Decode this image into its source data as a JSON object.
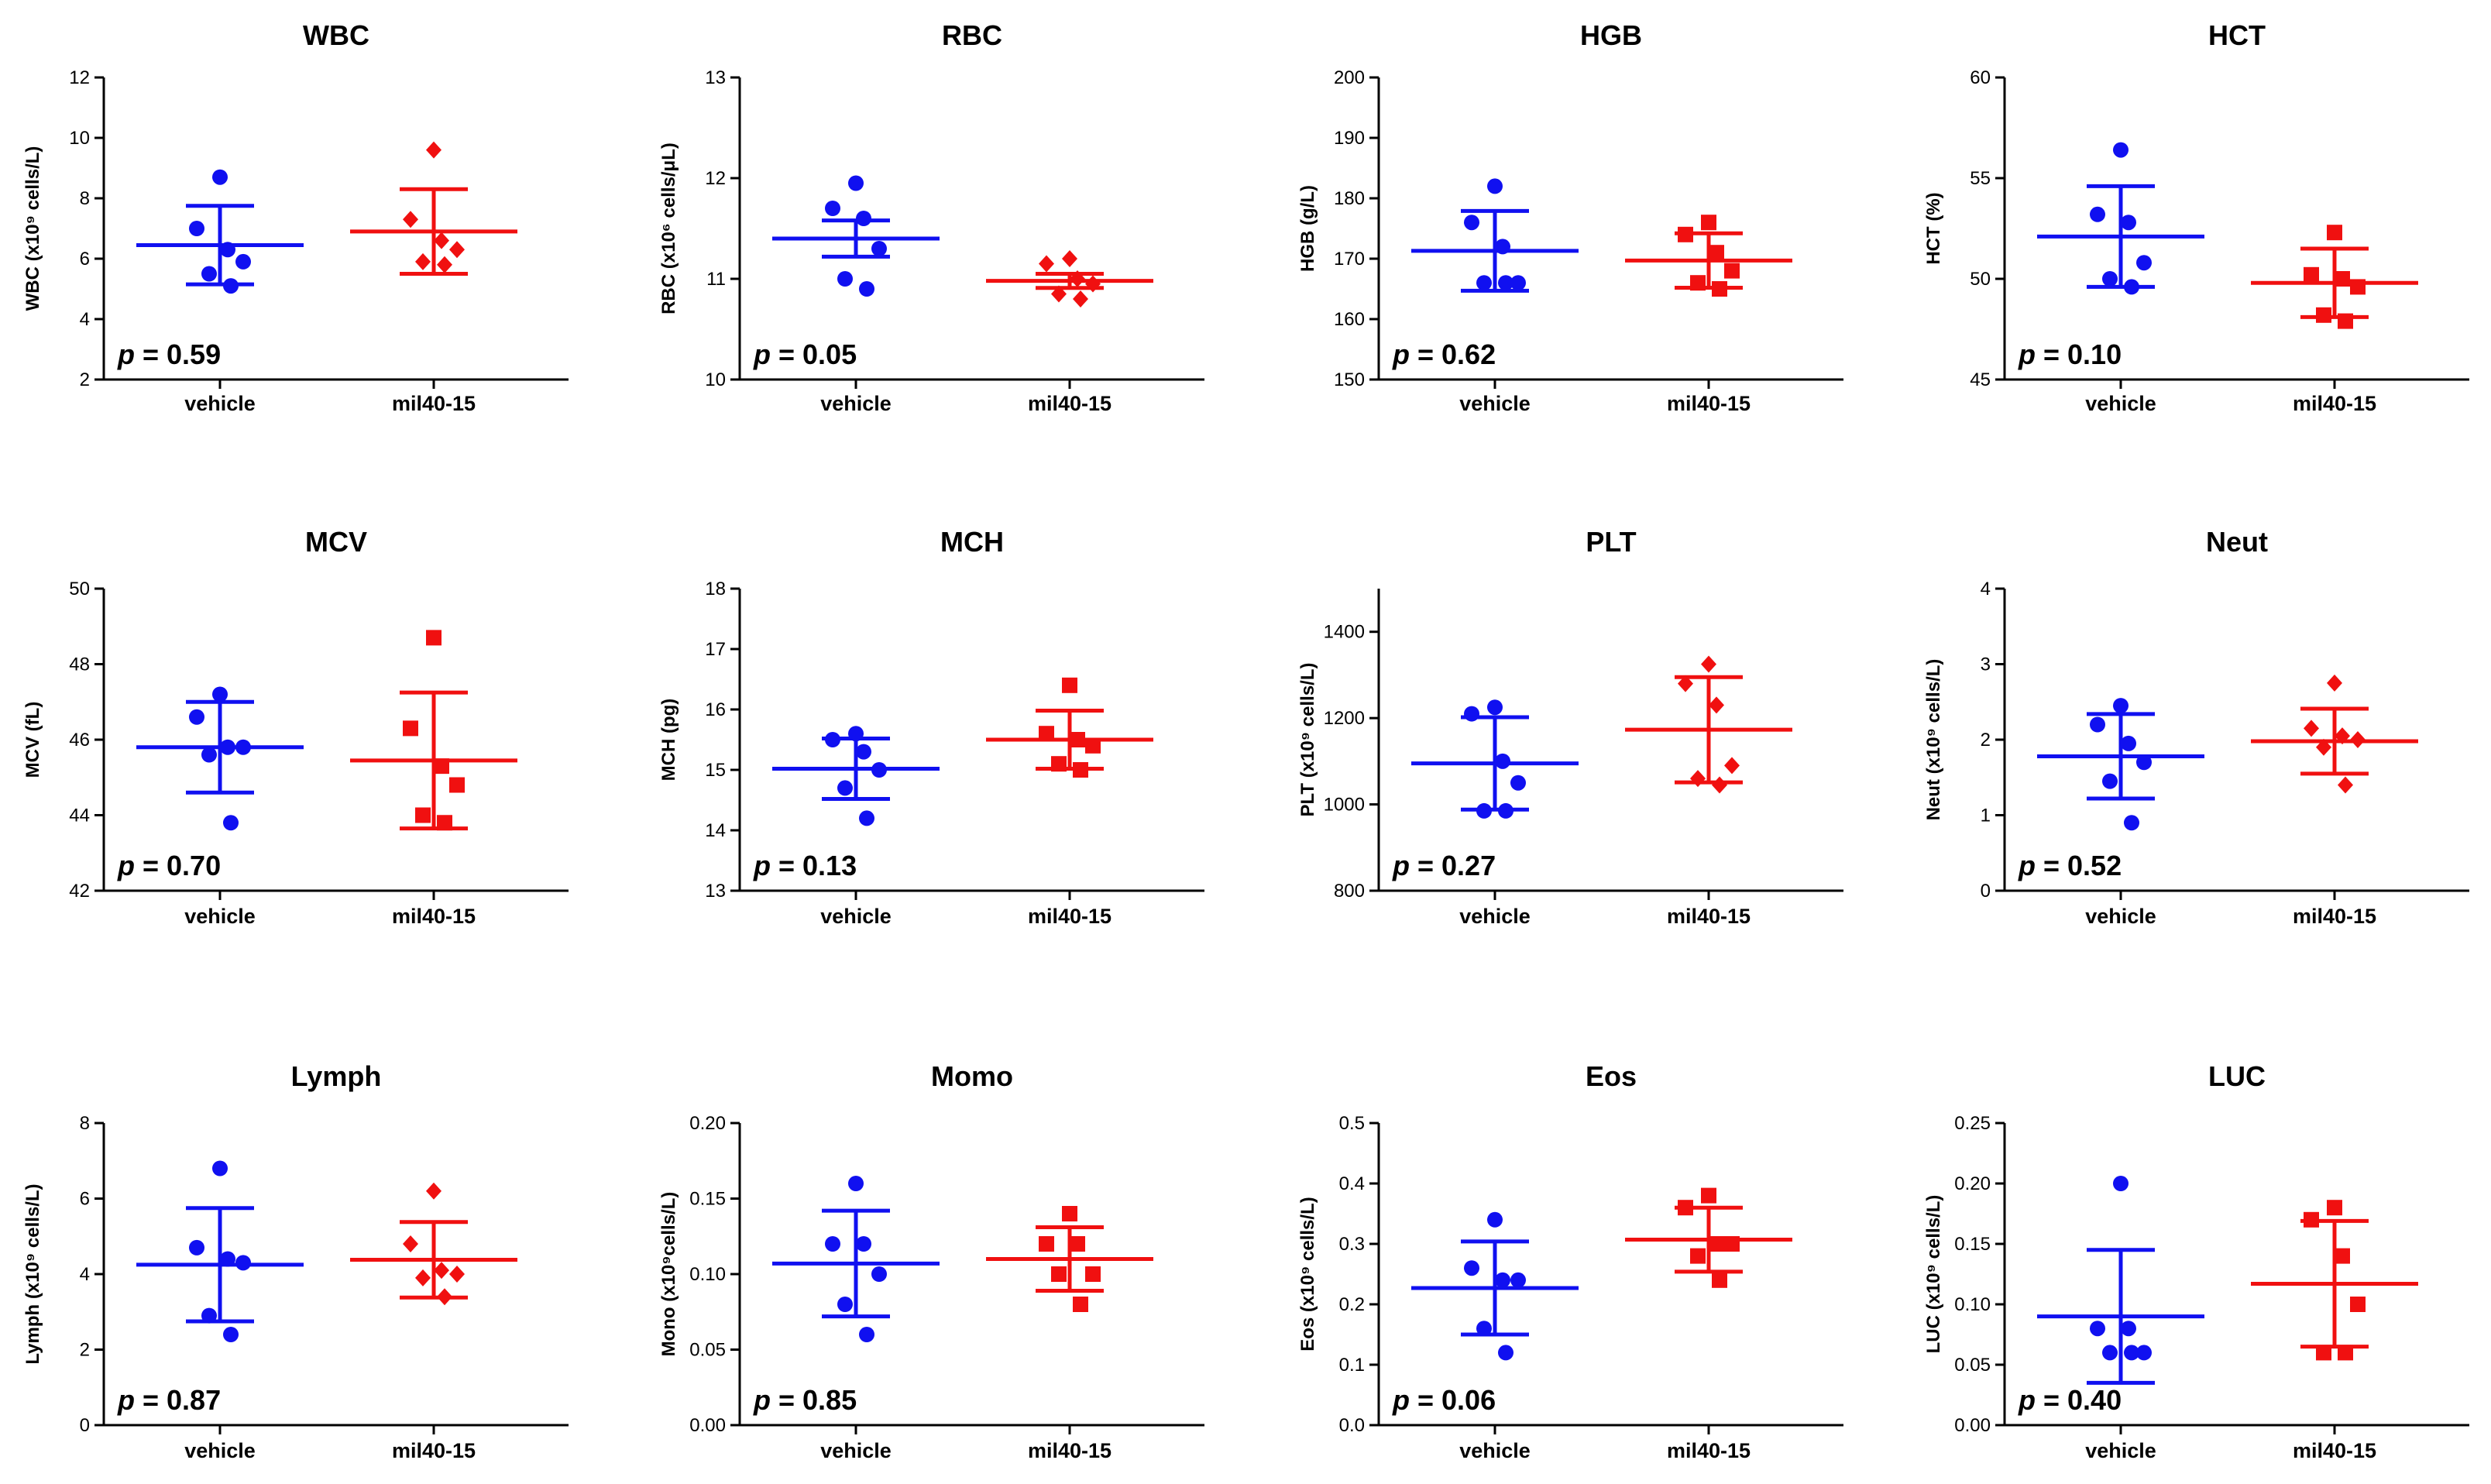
{
  "chart_data": [
    {
      "key": "wbc",
      "type": "scatter",
      "title": "WBC",
      "ylabel": "WBC (x10⁹ cells/L)",
      "categories": [
        "vehicle",
        "mil40-15"
      ],
      "ylim": [
        2,
        12
      ],
      "yticks": [
        2,
        4,
        6,
        8,
        10,
        12
      ],
      "p_label": "p",
      "p_value": "= 0.59",
      "series": [
        {
          "name": "vehicle",
          "color": "#1010f0",
          "marker": "circle",
          "points": [
            8.7,
            7.0,
            6.3,
            5.9,
            5.5,
            5.1
          ],
          "mean": 6.45,
          "sd": 1.3
        },
        {
          "name": "mil40-15",
          "color": "#f01010",
          "marker": "diamond",
          "points": [
            9.6,
            7.3,
            6.6,
            6.3,
            5.9,
            5.8
          ],
          "mean": 6.9,
          "sd": 1.4
        }
      ]
    },
    {
      "key": "rbc",
      "type": "scatter",
      "title": "RBC",
      "ylabel": "RBC (x10⁶ cells/μL)",
      "categories": [
        "vehicle",
        "mil40-15"
      ],
      "ylim": [
        10,
        13
      ],
      "yticks": [
        10,
        11,
        12,
        13
      ],
      "p_label": "p",
      "p_value": "= 0.05",
      "series": [
        {
          "name": "vehicle",
          "color": "#1010f0",
          "marker": "circle",
          "points": [
            11.95,
            11.7,
            11.6,
            11.3,
            11.0,
            10.9
          ],
          "mean": 11.4,
          "sd": 0.18
        },
        {
          "name": "mil40-15",
          "color": "#f01010",
          "marker": "diamond",
          "points": [
            11.2,
            11.15,
            11.0,
            10.95,
            10.85,
            10.8
          ],
          "mean": 10.98,
          "sd": 0.07
        }
      ]
    },
    {
      "key": "hgb",
      "type": "scatter",
      "title": "HGB",
      "ylabel": "HGB (g/L)",
      "categories": [
        "vehicle",
        "mil40-15"
      ],
      "ylim": [
        150,
        200
      ],
      "yticks": [
        150,
        160,
        170,
        180,
        190,
        200
      ],
      "p_label": "p",
      "p_value": "= 0.62",
      "series": [
        {
          "name": "vehicle",
          "color": "#1010f0",
          "marker": "circle",
          "points": [
            182,
            176,
            172,
            166,
            166,
            166
          ],
          "mean": 171.3,
          "sd": 6.6
        },
        {
          "name": "mil40-15",
          "color": "#f01010",
          "marker": "square",
          "points": [
            176,
            174,
            171,
            168,
            166,
            165
          ],
          "mean": 169.7,
          "sd": 4.5
        }
      ]
    },
    {
      "key": "hct",
      "type": "scatter",
      "title": "HCT",
      "ylabel": "HCT (%)",
      "categories": [
        "vehicle",
        "mil40-15"
      ],
      "ylim": [
        45,
        60
      ],
      "yticks": [
        45,
        50,
        55,
        60
      ],
      "p_label": "p",
      "p_value": "= 0.10",
      "series": [
        {
          "name": "vehicle",
          "color": "#1010f0",
          "marker": "circle",
          "points": [
            56.4,
            53.2,
            52.8,
            50.8,
            50.0,
            49.6
          ],
          "mean": 52.1,
          "sd": 2.5
        },
        {
          "name": "mil40-15",
          "color": "#f01010",
          "marker": "square",
          "points": [
            52.3,
            50.2,
            50.0,
            49.6,
            48.2,
            47.9
          ],
          "mean": 49.8,
          "sd": 1.7
        }
      ]
    },
    {
      "key": "mcv",
      "type": "scatter",
      "title": "MCV",
      "ylabel": "MCV (fL)",
      "categories": [
        "vehicle",
        "mil40-15"
      ],
      "ylim": [
        42,
        50
      ],
      "yticks": [
        42,
        44,
        46,
        48,
        50
      ],
      "p_label": "p",
      "p_value": "= 0.70",
      "series": [
        {
          "name": "vehicle",
          "color": "#1010f0",
          "marker": "circle",
          "points": [
            47.2,
            46.6,
            45.8,
            45.8,
            45.6,
            43.8
          ],
          "mean": 45.8,
          "sd": 1.2
        },
        {
          "name": "mil40-15",
          "color": "#f01010",
          "marker": "square",
          "points": [
            48.7,
            46.3,
            45.3,
            44.8,
            44.0,
            43.8
          ],
          "mean": 45.45,
          "sd": 1.8
        }
      ]
    },
    {
      "key": "mch",
      "type": "scatter",
      "title": "MCH",
      "ylabel": "MCH (pg)",
      "categories": [
        "vehicle",
        "mil40-15"
      ],
      "ylim": [
        13,
        18
      ],
      "yticks": [
        13,
        14,
        15,
        16,
        17,
        18
      ],
      "p_label": "p",
      "p_value": "= 0.13",
      "series": [
        {
          "name": "vehicle",
          "color": "#1010f0",
          "marker": "circle",
          "points": [
            15.6,
            15.5,
            15.3,
            15.0,
            14.7,
            14.2
          ],
          "mean": 15.02,
          "sd": 0.5
        },
        {
          "name": "mil40-15",
          "color": "#f01010",
          "marker": "square",
          "points": [
            16.4,
            15.6,
            15.5,
            15.4,
            15.1,
            15.0
          ],
          "mean": 15.5,
          "sd": 0.48
        }
      ]
    },
    {
      "key": "plt",
      "type": "scatter",
      "title": "PLT",
      "ylabel": "PLT (x10⁹ cells/L)",
      "categories": [
        "vehicle",
        "mil40-15"
      ],
      "ylim": [
        800,
        1500
      ],
      "yticks": [
        800,
        1000,
        1200,
        1400
      ],
      "p_label": "p",
      "p_value": "= 0.27",
      "series": [
        {
          "name": "vehicle",
          "color": "#1010f0",
          "marker": "circle",
          "points": [
            1225,
            1210,
            1100,
            1050,
            985,
            985
          ],
          "mean": 1095,
          "sd": 107
        },
        {
          "name": "mil40-15",
          "color": "#f01010",
          "marker": "diamond",
          "points": [
            1325,
            1280,
            1230,
            1090,
            1060,
            1045
          ],
          "mean": 1173,
          "sd": 122
        }
      ]
    },
    {
      "key": "neut",
      "type": "scatter",
      "title": "Neut",
      "ylabel": "Neut (x10⁹ cells/L)",
      "categories": [
        "vehicle",
        "mil40-15"
      ],
      "ylim": [
        0,
        4
      ],
      "yticks": [
        0,
        1,
        2,
        3,
        4
      ],
      "p_label": "p",
      "p_value": "= 0.52",
      "series": [
        {
          "name": "vehicle",
          "color": "#1010f0",
          "marker": "circle",
          "points": [
            2.45,
            2.2,
            1.95,
            1.7,
            1.45,
            0.9
          ],
          "mean": 1.78,
          "sd": 0.56
        },
        {
          "name": "mil40-15",
          "color": "#f01010",
          "marker": "diamond",
          "points": [
            2.75,
            2.15,
            2.05,
            2.0,
            1.9,
            1.4
          ],
          "mean": 1.98,
          "sd": 0.43
        }
      ]
    },
    {
      "key": "lymph",
      "type": "scatter",
      "title": "Lymph",
      "ylabel": "Lymph (x10⁹ cells/L)",
      "categories": [
        "vehicle",
        "mil40-15"
      ],
      "ylim": [
        0,
        8
      ],
      "yticks": [
        0,
        2,
        4,
        6,
        8
      ],
      "p_label": "p",
      "p_value": "= 0.87",
      "series": [
        {
          "name": "vehicle",
          "color": "#1010f0",
          "marker": "circle",
          "points": [
            6.8,
            4.7,
            4.4,
            4.3,
            2.9,
            2.4
          ],
          "mean": 4.25,
          "sd": 1.5
        },
        {
          "name": "mil40-15",
          "color": "#f01010",
          "marker": "diamond",
          "points": [
            6.2,
            4.8,
            4.1,
            4.0,
            3.9,
            3.4
          ],
          "mean": 4.38,
          "sd": 1.0
        }
      ]
    },
    {
      "key": "mono",
      "type": "scatter",
      "title": "Momo",
      "ylabel": "Mono (x10⁹cells/L)",
      "categories": [
        "vehicle",
        "mil40-15"
      ],
      "ylim": [
        0,
        0.2
      ],
      "yticks": [
        0,
        0.05,
        0.1,
        0.15,
        0.2
      ],
      "ytick_labels": [
        "0.00",
        "0.05",
        "0.10",
        "0.15",
        "0.20"
      ],
      "p_label": "p",
      "p_value": "= 0.85",
      "series": [
        {
          "name": "vehicle",
          "color": "#1010f0",
          "marker": "circle",
          "points": [
            0.16,
            0.12,
            0.12,
            0.1,
            0.08,
            0.06
          ],
          "mean": 0.107,
          "sd": 0.035
        },
        {
          "name": "mil40-15",
          "color": "#f01010",
          "marker": "square",
          "points": [
            0.14,
            0.12,
            0.12,
            0.1,
            0.1,
            0.08
          ],
          "mean": 0.11,
          "sd": 0.021
        }
      ]
    },
    {
      "key": "eos",
      "type": "scatter",
      "title": "Eos",
      "ylabel": "Eos (x10⁹ cells/L)",
      "categories": [
        "vehicle",
        "mil40-15"
      ],
      "ylim": [
        0,
        0.5
      ],
      "yticks": [
        0,
        0.1,
        0.2,
        0.3,
        0.4,
        0.5
      ],
      "ytick_labels": [
        "0.0",
        "0.1",
        "0.2",
        "0.3",
        "0.4",
        "0.5"
      ],
      "p_label": "p",
      "p_value": "= 0.06",
      "series": [
        {
          "name": "vehicle",
          "color": "#1010f0",
          "marker": "circle",
          "points": [
            0.34,
            0.26,
            0.24,
            0.24,
            0.16,
            0.12
          ],
          "mean": 0.227,
          "sd": 0.077
        },
        {
          "name": "mil40-15",
          "color": "#f01010",
          "marker": "square",
          "points": [
            0.38,
            0.36,
            0.3,
            0.3,
            0.28,
            0.24
          ],
          "mean": 0.307,
          "sd": 0.053
        }
      ]
    },
    {
      "key": "luc",
      "type": "scatter",
      "title": "LUC",
      "ylabel": "LUC (x10⁹ cells/L)",
      "categories": [
        "vehicle",
        "mil40-15"
      ],
      "ylim": [
        0,
        0.25
      ],
      "yticks": [
        0,
        0.05,
        0.1,
        0.15,
        0.2,
        0.25
      ],
      "ytick_labels": [
        "0.00",
        "0.05",
        "0.10",
        "0.15",
        "0.20",
        "0.25"
      ],
      "p_label": "p",
      "p_value": "= 0.40",
      "series": [
        {
          "name": "vehicle",
          "color": "#1010f0",
          "marker": "circle",
          "points": [
            0.2,
            0.08,
            0.08,
            0.06,
            0.06,
            0.06
          ],
          "mean": 0.09,
          "sd": 0.055
        },
        {
          "name": "mil40-15",
          "color": "#f01010",
          "marker": "square",
          "points": [
            0.18,
            0.17,
            0.14,
            0.1,
            0.06,
            0.06
          ],
          "mean": 0.117,
          "sd": 0.052
        }
      ]
    }
  ]
}
